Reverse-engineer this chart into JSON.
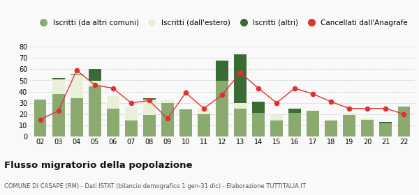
{
  "years": [
    "02",
    "03",
    "04",
    "05",
    "06",
    "07",
    "08",
    "09",
    "10",
    "11",
    "12",
    "13",
    "14",
    "15",
    "16",
    "17",
    "18",
    "19",
    "20",
    "21",
    "22"
  ],
  "iscritti_altri_comuni": [
    33,
    38,
    34,
    45,
    25,
    14,
    19,
    30,
    24,
    20,
    50,
    25,
    21,
    14,
    21,
    23,
    14,
    19,
    15,
    12,
    27
  ],
  "iscritti_estero": [
    0,
    13,
    21,
    5,
    11,
    12,
    14,
    3,
    0,
    5,
    0,
    5,
    0,
    5,
    0,
    0,
    0,
    2,
    1,
    0,
    0
  ],
  "iscritti_altri": [
    0,
    1,
    1,
    10,
    0,
    0,
    1,
    0,
    0,
    0,
    18,
    43,
    10,
    0,
    4,
    0,
    0,
    0,
    0,
    1,
    0
  ],
  "cancellati": [
    15,
    23,
    59,
    46,
    43,
    30,
    32,
    16,
    39,
    25,
    37,
    57,
    43,
    30,
    43,
    38,
    31,
    25,
    25,
    25,
    20
  ],
  "color_altri_comuni": "#8aaa70",
  "color_estero": "#eaf0d8",
  "color_altri": "#3a6b35",
  "color_cancellati": "#e03030",
  "ylim": [
    0,
    80
  ],
  "yticks": [
    0,
    10,
    20,
    30,
    40,
    50,
    60,
    70,
    80
  ],
  "title": "Flusso migratorio della popolazione",
  "subtitle": "COMUNE DI CASAPE (RM) - Dati ISTAT (bilancio demografico 1 gen-31 dic) - Elaborazione TUTTITALIA.IT",
  "legend_labels": [
    "Iscritti (da altri comuni)",
    "Iscritti (dall'estero)",
    "Iscritti (altri)",
    "Cancellati dall'Anagrafe"
  ],
  "bg_color": "#f9f9f9",
  "grid_color": "#cccccc"
}
